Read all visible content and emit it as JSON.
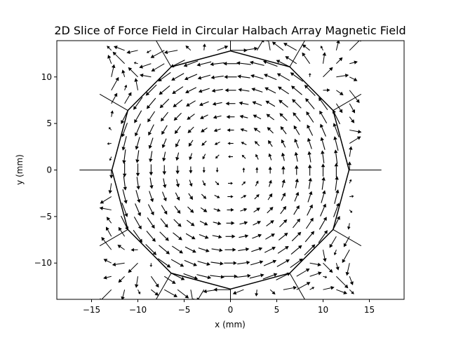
{
  "chart_data": {
    "type": "quiver",
    "title": "2D Slice of Force Field in Circular Halbach Array Magnetic Field",
    "xlabel": "x (mm)",
    "ylabel": "y (mm)",
    "xlim": [
      -18.75,
      18.75
    ],
    "ylim": [
      -13.9,
      13.9
    ],
    "x_ticks": [
      -15,
      -10,
      -5,
      0,
      5,
      10,
      15
    ],
    "y_ticks": [
      -10,
      -5,
      0,
      5,
      10
    ],
    "x_tick_labels": [
      "−15",
      "−10",
      "−5",
      "0",
      "5",
      "10",
      "15"
    ],
    "y_tick_labels": [
      "−10",
      "−5",
      "0",
      "5",
      "10"
    ],
    "grid": false,
    "boundary": {
      "shape": "dodecagon",
      "radius_mm": 12.8,
      "sides": 12,
      "start_angle_deg": 0,
      "color": "#000000"
    },
    "magnets": {
      "count": 12,
      "inner_radius_mm": 12.8,
      "length_mm": 3.5,
      "angles_deg": [
        0,
        30,
        60,
        90,
        120,
        150,
        180,
        210,
        240,
        270,
        300,
        330
      ]
    },
    "vector_grid": {
      "x": [
        -12.86,
        -11.43,
        -10.0,
        -8.57,
        -7.14,
        -5.71,
        -4.29,
        -2.86,
        -1.43,
        0.0,
        1.43,
        2.86,
        4.29,
        5.71,
        7.14,
        8.57,
        10.0,
        11.43,
        12.86
      ],
      "y": [
        -12.86,
        -11.43,
        -10.0,
        -8.57,
        -7.14,
        -5.71,
        -4.29,
        -2.86,
        -1.43,
        0.0,
        1.43,
        2.86,
        4.29,
        5.71,
        7.14,
        8.57,
        10.0,
        11.43,
        12.86
      ],
      "field": "vortex",
      "rotation": "counterclockwise",
      "arrow_color": "#000000"
    }
  }
}
